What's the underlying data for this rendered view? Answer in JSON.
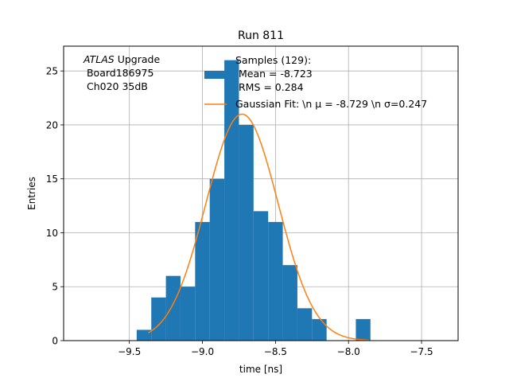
{
  "chart_data": {
    "type": "bar",
    "title": "Run 811",
    "xlabel": "time [ns]",
    "ylabel": "Entries",
    "xlim": [
      -9.95,
      -7.25
    ],
    "ylim": [
      0,
      27.3
    ],
    "grid": true,
    "xticks": [
      -9.5,
      -9.0,
      -8.5,
      -8.0,
      -7.5
    ],
    "xtick_labels": [
      "−9.5",
      "−9.0",
      "−8.5",
      "−8.0",
      "−7.5"
    ],
    "yticks": [
      0,
      5,
      10,
      15,
      20,
      25
    ],
    "ytick_labels": [
      "0",
      "5",
      "10",
      "15",
      "20",
      "25"
    ],
    "histogram": {
      "name": "Samples (129):\n Mean = -8.723\n RMS = 0.284",
      "color": "#1f77b4",
      "bin_edges": [
        -9.45,
        -9.35,
        -9.25,
        -9.15,
        -9.05,
        -8.95,
        -8.85,
        -8.75,
        -8.65,
        -8.55,
        -8.45,
        -8.35,
        -8.25,
        -8.15,
        -8.05,
        -7.95,
        -7.85,
        -7.75
      ],
      "counts": [
        1,
        4,
        6,
        5,
        11,
        15,
        26,
        20,
        12,
        11,
        7,
        3,
        2,
        0,
        0,
        2,
        0
      ]
    },
    "fit": {
      "name": "Gaussian Fit: \\n μ = -8.729 \\n σ=0.247",
      "color": "#ff7f0e",
      "mean": -8.729,
      "sigma": 0.247,
      "amplitude": 21.0,
      "x_range": [
        -9.37,
        -7.86
      ]
    },
    "legend_placement": "upper-center",
    "annotation_lines": [
      "ATLAS Upgrade",
      " Board186975",
      " Ch020 35dB"
    ],
    "annotation_italic_word": "ATLAS"
  }
}
